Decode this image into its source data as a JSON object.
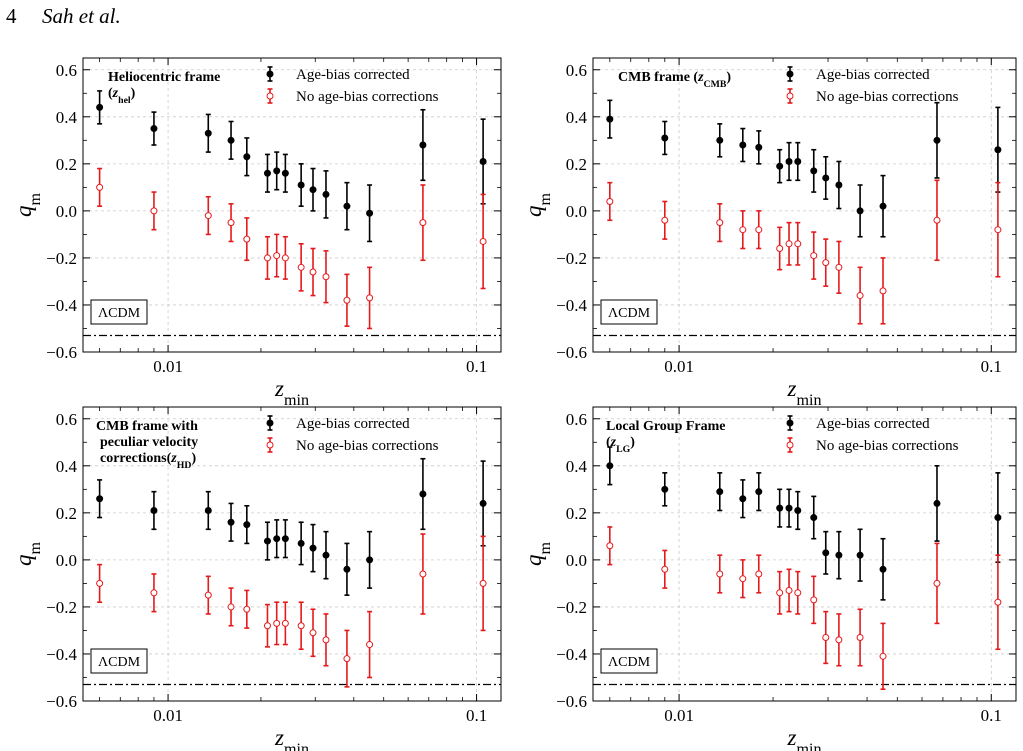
{
  "page": {
    "number": "4",
    "running_head": "Sah et al."
  },
  "legend": {
    "corrected": "Age-bias corrected",
    "uncorrected": "No age-bias corrections"
  },
  "model_label": "ΛCDM",
  "colors": {
    "corrected": "#000000",
    "uncorrected": "#e41a1c",
    "grid": "#cccccc"
  },
  "chart_data": [
    {
      "type": "scatter",
      "frame_label": "Heliocentric frame",
      "redshift_symbol": "z_hel",
      "xlabel": "z_min",
      "ylabel": "q_m",
      "xscale": "log",
      "xlim": [
        0.0053,
        0.12
      ],
      "ylim": [
        -0.6,
        0.65
      ],
      "xticks": [
        "0.01",
        "0.1"
      ],
      "yticks": [
        "0.6",
        "0.4",
        "0.2",
        "0.0",
        "−0.2",
        "−0.4",
        "−0.6"
      ],
      "lcdm_q": -0.53,
      "grid": true,
      "legend_position": "top-center",
      "x": [
        0.006,
        0.009,
        0.0135,
        0.016,
        0.018,
        0.021,
        0.0225,
        0.024,
        0.027,
        0.0295,
        0.0325,
        0.038,
        0.045,
        0.067,
        0.105
      ],
      "series": [
        {
          "name": "Age-bias corrected",
          "y": [
            0.44,
            0.35,
            0.33,
            0.3,
            0.23,
            0.16,
            0.17,
            0.16,
            0.11,
            0.09,
            0.07,
            0.02,
            -0.01,
            0.28,
            0.21
          ],
          "err": [
            0.07,
            0.07,
            0.08,
            0.08,
            0.08,
            0.08,
            0.08,
            0.08,
            0.09,
            0.09,
            0.1,
            0.1,
            0.12,
            0.15,
            0.18
          ]
        },
        {
          "name": "No age-bias corrections",
          "y": [
            0.1,
            0.0,
            -0.02,
            -0.05,
            -0.12,
            -0.2,
            -0.19,
            -0.2,
            -0.24,
            -0.26,
            -0.28,
            -0.38,
            -0.37,
            -0.05,
            -0.13
          ],
          "err": [
            0.08,
            0.08,
            0.08,
            0.08,
            0.09,
            0.09,
            0.09,
            0.09,
            0.1,
            0.1,
            0.11,
            0.11,
            0.13,
            0.16,
            0.2
          ]
        }
      ]
    },
    {
      "type": "scatter",
      "frame_label": "CMB frame",
      "redshift_symbol": "z_CMB",
      "xlabel": "z_min",
      "ylabel": "q_m",
      "xscale": "log",
      "xlim": [
        0.0053,
        0.12
      ],
      "ylim": [
        -0.6,
        0.65
      ],
      "xticks": [
        "0.01",
        "0.1"
      ],
      "yticks": [
        "0.6",
        "0.4",
        "0.2",
        "0.0",
        "−0.2",
        "−0.4",
        "−0.6"
      ],
      "lcdm_q": -0.53,
      "grid": true,
      "legend_position": "top-right",
      "x": [
        0.006,
        0.009,
        0.0135,
        0.016,
        0.018,
        0.021,
        0.0225,
        0.024,
        0.027,
        0.0295,
        0.0325,
        0.038,
        0.045,
        0.067,
        0.105
      ],
      "series": [
        {
          "name": "Age-bias corrected",
          "y": [
            0.39,
            0.31,
            0.3,
            0.28,
            0.27,
            0.19,
            0.21,
            0.21,
            0.17,
            0.14,
            0.11,
            0.0,
            0.02,
            0.3,
            0.26
          ],
          "err": [
            0.08,
            0.07,
            0.07,
            0.07,
            0.07,
            0.07,
            0.08,
            0.08,
            0.09,
            0.09,
            0.1,
            0.11,
            0.13,
            0.16,
            0.18
          ]
        },
        {
          "name": "No age-bias corrections",
          "y": [
            0.04,
            -0.04,
            -0.05,
            -0.08,
            -0.08,
            -0.16,
            -0.14,
            -0.14,
            -0.19,
            -0.22,
            -0.24,
            -0.36,
            -0.34,
            -0.04,
            -0.08
          ],
          "err": [
            0.08,
            0.08,
            0.08,
            0.08,
            0.08,
            0.09,
            0.09,
            0.09,
            0.1,
            0.1,
            0.11,
            0.12,
            0.14,
            0.17,
            0.2
          ]
        }
      ]
    },
    {
      "type": "scatter",
      "frame_label": "CMB frame with peculiar velocity corrections",
      "redshift_symbol": "z_HD",
      "xlabel": "z_min",
      "ylabel": "q_m",
      "xscale": "log",
      "xlim": [
        0.0053,
        0.12
      ],
      "ylim": [
        -0.6,
        0.65
      ],
      "xticks": [
        "0.01",
        "0.1"
      ],
      "yticks": [
        "0.6",
        "0.4",
        "0.2",
        "0.0",
        "−0.2",
        "−0.4",
        "−0.6"
      ],
      "lcdm_q": -0.53,
      "grid": true,
      "legend_position": "top-center",
      "x": [
        0.006,
        0.009,
        0.0135,
        0.016,
        0.018,
        0.021,
        0.0225,
        0.024,
        0.027,
        0.0295,
        0.0325,
        0.038,
        0.045,
        0.067,
        0.105
      ],
      "series": [
        {
          "name": "Age-bias corrected",
          "y": [
            0.26,
            0.21,
            0.21,
            0.16,
            0.15,
            0.08,
            0.09,
            0.09,
            0.07,
            0.05,
            0.02,
            -0.04,
            0.0,
            0.28,
            0.24
          ],
          "err": [
            0.08,
            0.08,
            0.08,
            0.08,
            0.08,
            0.08,
            0.08,
            0.08,
            0.09,
            0.1,
            0.1,
            0.11,
            0.12,
            0.15,
            0.18
          ]
        },
        {
          "name": "No age-bias corrections",
          "y": [
            -0.1,
            -0.14,
            -0.15,
            -0.2,
            -0.21,
            -0.28,
            -0.27,
            -0.27,
            -0.28,
            -0.31,
            -0.34,
            -0.42,
            -0.36,
            -0.06,
            -0.1
          ],
          "err": [
            0.08,
            0.08,
            0.08,
            0.08,
            0.08,
            0.09,
            0.09,
            0.09,
            0.1,
            0.1,
            0.11,
            0.12,
            0.14,
            0.17,
            0.2
          ]
        }
      ]
    },
    {
      "type": "scatter",
      "frame_label": "Local Group Frame",
      "redshift_symbol": "z_LG",
      "xlabel": "z_min",
      "ylabel": "q_m",
      "xscale": "log",
      "xlim": [
        0.0053,
        0.12
      ],
      "ylim": [
        -0.6,
        0.65
      ],
      "xticks": [
        "0.01",
        "0.1"
      ],
      "yticks": [
        "0.6",
        "0.4",
        "0.2",
        "0.0",
        "−0.2",
        "−0.4",
        "−0.6"
      ],
      "lcdm_q": -0.53,
      "grid": true,
      "legend_position": "top-right",
      "x": [
        0.006,
        0.009,
        0.0135,
        0.016,
        0.018,
        0.021,
        0.0225,
        0.024,
        0.027,
        0.0295,
        0.0325,
        0.038,
        0.045,
        0.067,
        0.105
      ],
      "series": [
        {
          "name": "Age-bias corrected",
          "y": [
            0.4,
            0.3,
            0.29,
            0.26,
            0.29,
            0.22,
            0.22,
            0.21,
            0.18,
            0.03,
            0.02,
            0.02,
            -0.04,
            0.24,
            0.18
          ],
          "err": [
            0.08,
            0.07,
            0.08,
            0.08,
            0.08,
            0.08,
            0.08,
            0.08,
            0.09,
            0.09,
            0.1,
            0.11,
            0.13,
            0.16,
            0.19
          ]
        },
        {
          "name": "No age-bias corrections",
          "y": [
            0.06,
            -0.04,
            -0.06,
            -0.08,
            -0.06,
            -0.14,
            -0.13,
            -0.14,
            -0.17,
            -0.33,
            -0.34,
            -0.33,
            -0.41,
            -0.1,
            -0.18
          ],
          "err": [
            0.08,
            0.08,
            0.08,
            0.08,
            0.08,
            0.09,
            0.09,
            0.09,
            0.1,
            0.11,
            0.11,
            0.12,
            0.14,
            0.17,
            0.2
          ]
        }
      ]
    }
  ]
}
